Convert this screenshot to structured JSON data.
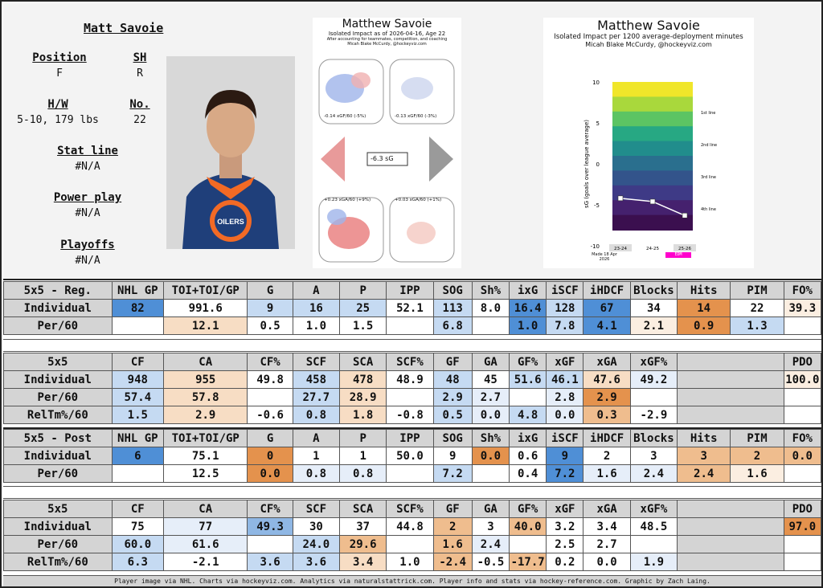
{
  "player": {
    "name": "Matt Savoie",
    "position_label": "Position",
    "position": "F",
    "shoots_label": "SH",
    "shoots": "R",
    "hw_label": "H/W",
    "hw": "5-10, 179 lbs",
    "number_label": "No.",
    "number": "22",
    "statline_label": "Stat line",
    "statline": "#N/A",
    "pp_label": "Power play",
    "pp": "#N/A",
    "playoffs_label": "Playoffs",
    "playoffs": "#N/A"
  },
  "rink_chart": {
    "title": "Matthew Savoie",
    "subtitle": "Isolated Impact as of 2026-04-16, Age 22",
    "credit1": "After accounting for teammates, competition, and coaching",
    "credit2": "Micah Blake McCurdy, @hockeyviz.com",
    "offence_xg": "-0.14 xGF/60 (-5%)",
    "offence_xg2": "-0.13 xGF/60 (-3%)",
    "center": "-6.3 sG",
    "defence_xg": "+0.23 xGA/60 (+9%)",
    "defence_xg2": "+0.03 xGA/60 (+1%)"
  },
  "cum_chart": {
    "title": "Matthew Savoie",
    "subtitle": "Isolated Impact per 1200 average-deployment minutes",
    "credit": "Micah Blake McCurdy, @hockeyviz.com",
    "ylabel": "sG (goals over league average)",
    "yticks": [
      "10",
      "5",
      "0",
      "-5",
      "-10"
    ],
    "seasons": [
      "23-24",
      "24-25",
      "25-26"
    ],
    "tier_labels": [
      "1st line",
      "2nd line",
      "3rd line",
      "4th line"
    ],
    "team": "EDM",
    "made": "Made 18 Apr 2026"
  },
  "chart_data": {
    "type": "line",
    "title": "Matthew Savoie",
    "x": [
      "23-24",
      "24-25",
      "25-26"
    ],
    "series": [
      {
        "values": [
          -4.2,
          -4.6,
          -6.3
        ]
      }
    ],
    "ylabel": "sG (goals over league average)",
    "ylim": [
      -10,
      10
    ]
  },
  "reg": {
    "headers": [
      "5x5 - Reg.",
      "NHL GP",
      "TOI+TOI/GP",
      "G",
      "A",
      "P",
      "IPP",
      "SOG",
      "Sh%",
      "ixG",
      "iSCF",
      "iHDCF",
      "Blocks",
      "Hits",
      "PIM",
      "FO%"
    ],
    "rows": [
      [
        "Individual",
        "82",
        "991.6",
        "9",
        "16",
        "25",
        "52.1",
        "113",
        "8.0",
        "16.4",
        "128",
        "67",
        "34",
        "14",
        "22",
        "39.3"
      ],
      [
        "Per/60",
        "",
        "12.1",
        "0.5",
        "1.0",
        "1.5",
        "",
        "6.8",
        "",
        "1.0",
        "7.8",
        "4.1",
        "2.1",
        "0.9",
        "1.3",
        ""
      ]
    ]
  },
  "reg_onice": {
    "headers": [
      "5x5",
      "CF",
      "CA",
      "CF%",
      "SCF",
      "SCA",
      "SCF%",
      "GF",
      "GA",
      "GF%",
      "xGF",
      "xGA",
      "xGF%",
      "",
      "PDO"
    ],
    "rows": [
      [
        "Individual",
        "948",
        "955",
        "49.8",
        "458",
        "478",
        "48.9",
        "48",
        "45",
        "51.6",
        "46.1",
        "47.6",
        "49.2",
        "",
        "100.0"
      ],
      [
        "Per/60",
        "57.4",
        "57.8",
        "",
        "27.7",
        "28.9",
        "",
        "2.9",
        "2.7",
        "",
        "2.8",
        "2.9",
        "",
        "",
        ""
      ],
      [
        "RelTm%/60",
        "1.5",
        "2.9",
        "-0.6",
        "0.8",
        "1.8",
        "-0.8",
        "0.5",
        "0.0",
        "4.8",
        "0.0",
        "0.3",
        "-2.9",
        "",
        ""
      ]
    ]
  },
  "post": {
    "headers": [
      "5x5 - Post",
      "NHL GP",
      "TOI+TOI/GP",
      "G",
      "A",
      "P",
      "IPP",
      "SOG",
      "Sh%",
      "ixG",
      "iSCF",
      "iHDCF",
      "Blocks",
      "Hits",
      "PIM",
      "FO%"
    ],
    "rows": [
      [
        "Individual",
        "6",
        "75.1",
        "0",
        "1",
        "1",
        "50.0",
        "9",
        "0.0",
        "0.6",
        "9",
        "2",
        "3",
        "3",
        "2",
        "0.0"
      ],
      [
        "Per/60",
        "",
        "12.5",
        "0.0",
        "0.8",
        "0.8",
        "",
        "7.2",
        "",
        "0.4",
        "7.2",
        "1.6",
        "2.4",
        "2.4",
        "1.6",
        ""
      ]
    ]
  },
  "post_onice": {
    "headers": [
      "5x5",
      "CF",
      "CA",
      "CF%",
      "SCF",
      "SCA",
      "SCF%",
      "GF",
      "GA",
      "GF%",
      "xGF",
      "xGA",
      "xGF%",
      "",
      "PDO"
    ],
    "rows": [
      [
        "Individual",
        "75",
        "77",
        "49.3",
        "30",
        "37",
        "44.8",
        "2",
        "3",
        "40.0",
        "3.2",
        "3.4",
        "48.5",
        "",
        "97.0"
      ],
      [
        "Per/60",
        "60.0",
        "61.6",
        "",
        "24.0",
        "29.6",
        "",
        "1.6",
        "2.4",
        "",
        "2.5",
        "2.7",
        "",
        "",
        ""
      ],
      [
        "RelTm%/60",
        "6.3",
        "-2.1",
        "3.6",
        "3.6",
        "3.4",
        "1.0",
        "-2.4",
        "-0.5",
        "-17.7",
        "0.2",
        "0.0",
        "1.9",
        "",
        ""
      ]
    ]
  },
  "footer": "Player image via NHL. Charts via hockeyviz.com. Analytics via naturalstattrick.com. Player info and stats via hockey-reference.com. Graphic by Zach Laing."
}
